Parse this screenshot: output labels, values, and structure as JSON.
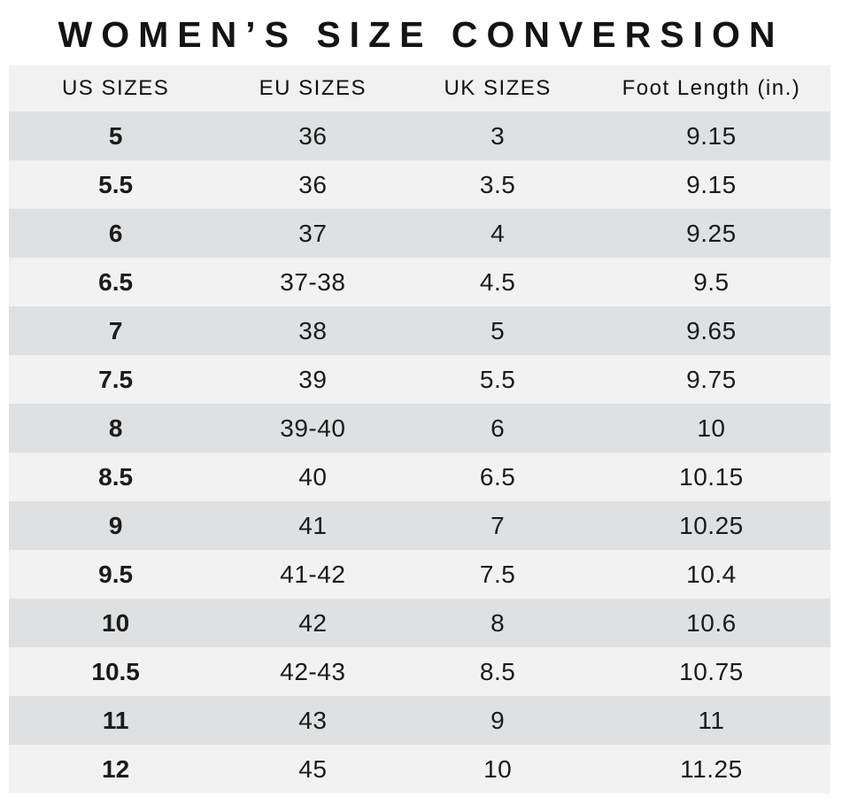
{
  "page": {
    "title": "WOMEN’S SIZE CONVERSION"
  },
  "style": {
    "colors": {
      "page-bg": "#ffffff",
      "header-bg": "#f1f1f2",
      "row-dark": "#dee0e2",
      "row-light": "#f2f2f3",
      "text": "#1b1b1b",
      "title": "#141414"
    }
  },
  "chart_data": {
    "type": "table",
    "title": "WOMEN’S SIZE CONVERSION",
    "columns": [
      "US SIZES",
      "EU SIZES",
      "UK SIZES",
      "Foot Length (in.)"
    ],
    "rows": [
      [
        "5",
        "36",
        "3",
        "9.15"
      ],
      [
        "5.5",
        "36",
        "3.5",
        "9.15"
      ],
      [
        "6",
        "37",
        "4",
        "9.25"
      ],
      [
        "6.5",
        "37-38",
        "4.5",
        "9.5"
      ],
      [
        "7",
        "38",
        "5",
        "9.65"
      ],
      [
        "7.5",
        "39",
        "5.5",
        "9.75"
      ],
      [
        "8",
        "39-40",
        "6",
        "10"
      ],
      [
        "8.5",
        "40",
        "6.5",
        "10.15"
      ],
      [
        "9",
        "41",
        "7",
        "10.25"
      ],
      [
        "9.5",
        "41-42",
        "7.5",
        "10.4"
      ],
      [
        "10",
        "42",
        "8",
        "10.6"
      ],
      [
        "10.5",
        "42-43",
        "8.5",
        "10.75"
      ],
      [
        "11",
        "43",
        "9",
        "11"
      ],
      [
        "12",
        "45",
        "10",
        "11.25"
      ]
    ]
  }
}
